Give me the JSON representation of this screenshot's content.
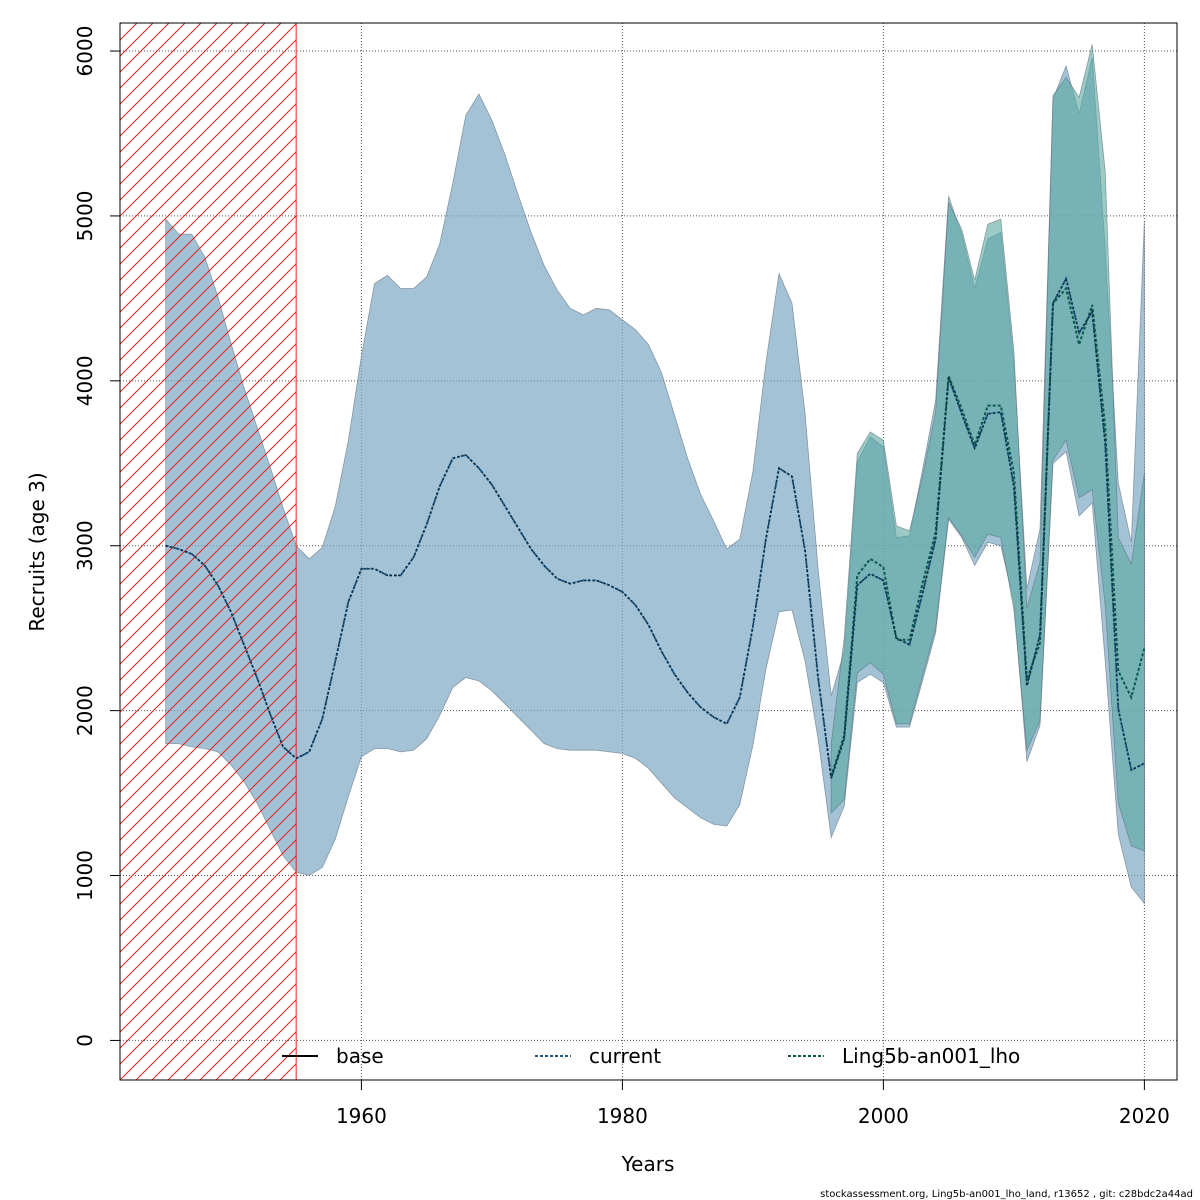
{
  "chart_data": {
    "type": "line",
    "title": "",
    "xlabel": "Years",
    "ylabel": "Recruits (age 3)",
    "xlim": [
      1941.5,
      2022.5
    ],
    "ylim": [
      -240,
      6170
    ],
    "x_ticks": [
      1960,
      1980,
      2000,
      2020
    ],
    "y_ticks": [
      0,
      1000,
      2000,
      3000,
      4000,
      5000,
      6000
    ],
    "grid": true,
    "excluded_period": [
      1941.5,
      1955
    ],
    "colors": {
      "band_base": "#7ea8c4",
      "band_current": "#5aa8a0",
      "band_lho": "#5aa8a0",
      "line_base": "#000000",
      "line_current": "#1f5a8a",
      "line_lho": "#0c5a4e",
      "hatch": "#e82020",
      "grid": "#555555"
    },
    "series": [
      {
        "name": "base",
        "x": [],
        "values": [],
        "lower": [],
        "upper": []
      },
      {
        "name": "current",
        "x": [
          1945,
          1946,
          1947,
          1948,
          1949,
          1950,
          1951,
          1952,
          1953,
          1954,
          1955,
          1956,
          1957,
          1958,
          1959,
          1960,
          1961,
          1962,
          1963,
          1964,
          1965,
          1966,
          1967,
          1968,
          1969,
          1970,
          1971,
          1972,
          1973,
          1974,
          1975,
          1976,
          1977,
          1978,
          1979,
          1980,
          1981,
          1982,
          1983,
          1984,
          1985,
          1986,
          1987,
          1988,
          1989,
          1990,
          1991,
          1992,
          1993,
          1994,
          1995,
          1996,
          1997,
          1998,
          1999,
          2000,
          2001,
          2002,
          2003,
          2004,
          2005,
          2006,
          2007,
          2008,
          2009,
          2010,
          2011,
          2012,
          2013,
          2014,
          2015,
          2016,
          2017,
          2018,
          2019,
          2020
        ],
        "values": [
          3000,
          2980,
          2950,
          2880,
          2760,
          2600,
          2400,
          2200,
          1980,
          1780,
          1710,
          1750,
          1950,
          2300,
          2660,
          2860,
          2860,
          2820,
          2820,
          2930,
          3130,
          3360,
          3530,
          3550,
          3470,
          3370,
          3240,
          3110,
          2980,
          2880,
          2800,
          2770,
          2790,
          2790,
          2760,
          2720,
          2640,
          2520,
          2360,
          2220,
          2110,
          2020,
          1960,
          1920,
          2080,
          2510,
          3040,
          3470,
          3420,
          2970,
          2200,
          1590,
          1830,
          2760,
          2830,
          2790,
          2440,
          2400,
          2710,
          3040,
          4020,
          3800,
          3590,
          3800,
          3810,
          3360,
          2150,
          2460,
          4470,
          4620,
          4290,
          4420,
          3620,
          2010,
          1640,
          1680
        ],
        "lower": [
          1800,
          1800,
          1780,
          1770,
          1750,
          1670,
          1570,
          1440,
          1280,
          1120,
          1020,
          1000,
          1050,
          1220,
          1480,
          1720,
          1770,
          1770,
          1750,
          1760,
          1830,
          1970,
          2140,
          2200,
          2180,
          2120,
          2040,
          1960,
          1880,
          1800,
          1770,
          1760,
          1760,
          1760,
          1750,
          1740,
          1710,
          1650,
          1560,
          1470,
          1410,
          1350,
          1310,
          1300,
          1430,
          1790,
          2250,
          2600,
          2610,
          2300,
          1830,
          1230,
          1420,
          2170,
          2220,
          2170,
          1900,
          1900,
          2180,
          2470,
          3160,
          3050,
          2880,
          3020,
          3000,
          2660,
          1690,
          1910,
          3500,
          3570,
          3180,
          3260,
          2300,
          1250,
          930,
          830
        ],
        "upper": [
          4980,
          4890,
          4890,
          4750,
          4510,
          4230,
          3960,
          3720,
          3480,
          3230,
          3000,
          2920,
          2990,
          3240,
          3640,
          4150,
          4590,
          4640,
          4560,
          4560,
          4630,
          4830,
          5200,
          5610,
          5740,
          5580,
          5370,
          5130,
          4900,
          4700,
          4550,
          4440,
          4400,
          4440,
          4430,
          4370,
          4310,
          4220,
          4050,
          3790,
          3530,
          3310,
          3150,
          2980,
          3040,
          3450,
          4110,
          4650,
          4470,
          3800,
          2860,
          2090,
          2360,
          3510,
          3660,
          3600,
          3050,
          3060,
          3460,
          3880,
          5120,
          4890,
          4560,
          4860,
          4900,
          4110,
          2740,
          3100,
          5710,
          5910,
          5620,
          5960,
          4800,
          3380,
          3020,
          4970
        ]
      },
      {
        "name": "Ling5b-an001_lho",
        "x": [
          1996,
          1997,
          1998,
          1999,
          2000,
          2001,
          2002,
          2003,
          2004,
          2005,
          2006,
          2007,
          2008,
          2009,
          2010,
          2011,
          2012,
          2013,
          2014,
          2015,
          2016,
          2017,
          2018,
          2019,
          2020
        ],
        "values": [
          1600,
          1850,
          2820,
          2920,
          2870,
          2430,
          2430,
          2770,
          3080,
          4030,
          3830,
          3610,
          3850,
          3850,
          3440,
          2190,
          2410,
          4470,
          4560,
          4220,
          4460,
          3720,
          2240,
          2080,
          2380
        ],
        "lower": [
          1380,
          1460,
          2230,
          2290,
          2220,
          1920,
          1920,
          2210,
          2500,
          3170,
          3060,
          2930,
          3070,
          3050,
          2610,
          1760,
          1940,
          3520,
          3640,
          3290,
          3340,
          2640,
          1440,
          1180,
          1150
        ],
        "upper": [
          1800,
          2440,
          3560,
          3690,
          3640,
          3120,
          3090,
          3420,
          3810,
          5080,
          4920,
          4610,
          4950,
          4980,
          4180,
          2620,
          2900,
          5730,
          5840,
          5720,
          6040,
          5270,
          3050,
          2890,
          3440
        ]
      }
    ],
    "legend": {
      "position": "bottom",
      "entries": [
        "base",
        "current",
        "Ling5b-an001_lho"
      ]
    },
    "footer": "stockassessment.org, Ling5b-an001_lho_land, r13652 , git: c28bdc2a44ad"
  }
}
